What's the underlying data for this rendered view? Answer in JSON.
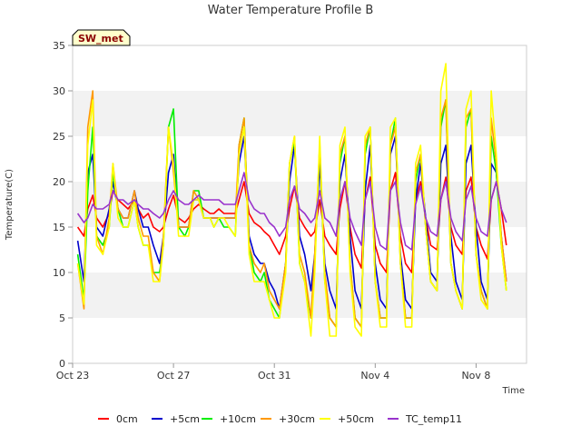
{
  "chart_data": {
    "type": "line",
    "title": "Water Temperature Profile B",
    "xlabel": "Time",
    "ylabel": "Temperature(C)",
    "ylim": [
      0,
      35
    ],
    "yticks": [
      0,
      5,
      10,
      15,
      20,
      25,
      30,
      35
    ],
    "xlim": [
      0,
      18
    ],
    "xticks": [
      {
        "value": 0,
        "label": "Oct 23"
      },
      {
        "value": 4,
        "label": "Oct 27"
      },
      {
        "value": 8,
        "label": "Oct 31"
      },
      {
        "value": 12,
        "label": "Nov 4"
      },
      {
        "value": 16,
        "label": "Nov 8"
      }
    ],
    "x_unit": "days since Oct 23",
    "grid": "alternating horizontal bands",
    "legend_position": "bottom",
    "station_tag": "SW_met",
    "colors": {
      "band": "#f2f2f2",
      "tag_fill": "#ffffcc",
      "tag_text": "#8b0000"
    },
    "x": [
      0.2,
      0.45,
      0.6,
      0.8,
      0.95,
      1.2,
      1.45,
      1.6,
      1.8,
      2.0,
      2.2,
      2.45,
      2.6,
      2.8,
      3.0,
      3.2,
      3.45,
      3.6,
      3.8,
      4.0,
      4.2,
      4.45,
      4.6,
      4.8,
      5.0,
      5.2,
      5.45,
      5.6,
      5.8,
      6.0,
      6.2,
      6.45,
      6.6,
      6.8,
      7.0,
      7.2,
      7.45,
      7.6,
      7.8,
      8.0,
      8.2,
      8.45,
      8.6,
      8.8,
      9.0,
      9.2,
      9.45,
      9.6,
      9.8,
      10.0,
      10.2,
      10.45,
      10.6,
      10.8,
      11.0,
      11.2,
      11.45,
      11.6,
      11.8,
      12.0,
      12.2,
      12.45,
      12.6,
      12.8,
      13.0,
      13.2,
      13.45,
      13.6,
      13.8,
      14.0,
      14.2,
      14.45,
      14.6,
      14.8,
      15.0,
      15.2,
      15.45,
      15.6,
      15.8,
      16.0,
      16.2,
      16.45,
      16.6,
      16.8,
      17.0,
      17.2
    ],
    "series": [
      {
        "name": "0cm",
        "color": "#ff0000",
        "values": [
          15,
          14,
          17,
          18.5,
          16,
          15,
          16.5,
          19,
          18,
          17.5,
          17,
          18,
          17,
          16,
          16.5,
          15,
          14.5,
          15,
          17,
          18.5,
          16,
          15.5,
          16,
          17,
          17.5,
          17,
          16.5,
          16.5,
          17,
          16.5,
          16.5,
          16.5,
          18,
          20,
          16.5,
          15.5,
          15,
          14.5,
          14,
          13,
          12,
          14,
          17,
          19.5,
          16,
          15,
          14,
          14.5,
          18,
          14,
          13,
          12,
          17,
          20,
          15,
          12,
          10.5,
          18,
          20.5,
          13,
          11,
          10,
          19,
          21,
          14,
          11,
          10,
          18,
          20,
          16,
          13,
          12.5,
          18,
          20.5,
          15,
          13,
          12,
          19,
          20.5,
          15,
          13,
          11.5,
          18,
          20,
          17,
          13
        ]
      },
      {
        "name": "+5cm",
        "color": "#0000cc",
        "values": [
          13.5,
          9,
          21,
          23,
          15,
          14,
          17,
          20,
          17,
          16,
          16,
          19,
          17,
          15,
          15,
          13,
          11,
          14,
          21,
          23,
          15,
          15,
          15,
          18,
          18,
          16,
          16,
          16,
          16,
          16,
          16,
          16,
          22,
          25,
          14,
          12,
          11,
          11,
          9,
          8,
          6,
          11,
          20,
          24,
          14,
          12,
          8,
          12,
          22,
          11,
          8,
          6,
          20,
          23,
          14,
          8,
          6,
          19,
          24,
          11,
          7,
          6,
          23,
          25,
          12,
          7,
          6,
          18,
          22,
          16,
          10,
          9,
          22,
          24,
          14,
          9,
          7,
          22,
          24,
          15,
          9,
          7,
          22,
          21,
          14,
          9
        ]
      },
      {
        "name": "+10cm",
        "color": "#00ee00",
        "values": [
          12,
          7,
          19,
          26,
          14,
          13,
          15,
          21,
          17,
          15,
          15,
          18,
          15,
          13,
          13,
          10,
          10,
          13,
          26,
          28,
          15,
          14,
          15,
          19,
          19,
          16,
          16,
          15,
          16,
          15,
          15,
          14,
          24,
          27,
          13,
          10,
          9,
          10,
          7,
          6,
          5,
          11,
          22,
          24.5,
          11,
          9,
          5,
          11,
          24,
          9,
          5,
          4,
          22,
          25,
          11,
          5,
          4,
          23,
          26,
          9,
          5,
          5,
          24,
          27,
          11,
          5,
          5,
          20,
          23,
          15,
          9,
          8,
          26,
          29,
          11,
          8,
          6,
          26,
          28,
          12,
          8,
          6,
          25,
          21,
          13,
          8
        ]
      },
      {
        "name": "+30cm",
        "color": "#ff9900",
        "values": [
          11,
          6,
          26,
          30,
          14,
          12,
          16,
          22,
          17,
          16,
          16,
          19,
          16,
          14,
          14,
          10,
          9,
          14,
          26,
          21,
          15,
          15,
          15,
          19,
          18,
          16,
          16,
          16,
          16,
          16,
          16,
          16,
          24,
          27,
          13,
          11,
          10,
          11,
          8,
          7,
          6,
          11,
          22,
          25,
          12,
          10,
          5,
          12,
          24,
          10,
          5,
          4,
          23,
          25,
          11,
          5,
          4,
          24,
          26,
          9,
          5,
          5,
          24,
          26,
          11,
          5,
          5,
          21,
          23,
          15,
          9,
          8,
          27,
          29,
          11,
          8,
          6,
          27,
          28,
          12,
          8,
          6,
          27,
          22,
          14,
          9
        ]
      },
      {
        "name": "+50cm",
        "color": "#ffff00",
        "values": [
          11,
          6.5,
          24,
          29,
          13,
          12,
          15,
          22,
          16,
          15,
          15,
          18,
          15,
          13,
          13,
          9,
          9,
          13,
          26,
          22,
          14,
          14,
          14,
          18,
          18,
          16,
          16,
          15,
          16,
          16,
          15,
          14,
          23,
          26,
          12,
          9,
          9,
          9,
          7,
          5,
          5,
          10,
          22,
          25,
          11,
          9,
          3,
          10,
          25,
          9,
          3,
          3,
          24,
          26,
          10,
          4,
          3,
          25,
          26,
          9,
          4,
          4,
          26,
          27,
          11,
          4,
          4,
          22,
          24,
          15,
          9,
          8,
          30,
          33,
          11,
          8,
          6,
          28,
          30,
          12,
          7,
          6,
          30,
          23,
          13,
          8
        ]
      },
      {
        "name": "TC_temp11",
        "color": "#9933cc",
        "values": [
          16.5,
          15.5,
          16,
          17.5,
          17,
          17,
          17.5,
          19,
          18,
          18,
          17.5,
          18,
          17.5,
          17,
          17,
          16.5,
          16,
          16.5,
          18,
          19,
          18,
          17.5,
          17.5,
          18,
          18.5,
          18,
          18,
          18,
          18,
          17.5,
          17.5,
          17.5,
          19,
          21,
          18,
          17,
          16.5,
          16.5,
          15.5,
          15,
          14,
          15,
          18,
          19.5,
          17,
          16.5,
          15.5,
          16,
          19,
          16,
          15.5,
          14,
          18,
          20,
          16,
          14.5,
          13,
          18,
          20,
          15,
          13,
          12.5,
          19,
          20,
          15.5,
          13,
          12.5,
          17.5,
          19.5,
          16,
          14.5,
          14,
          18,
          20,
          16,
          14.5,
          13.5,
          18,
          19.5,
          16,
          14.5,
          14,
          18,
          20,
          17,
          15.5
        ]
      }
    ]
  }
}
